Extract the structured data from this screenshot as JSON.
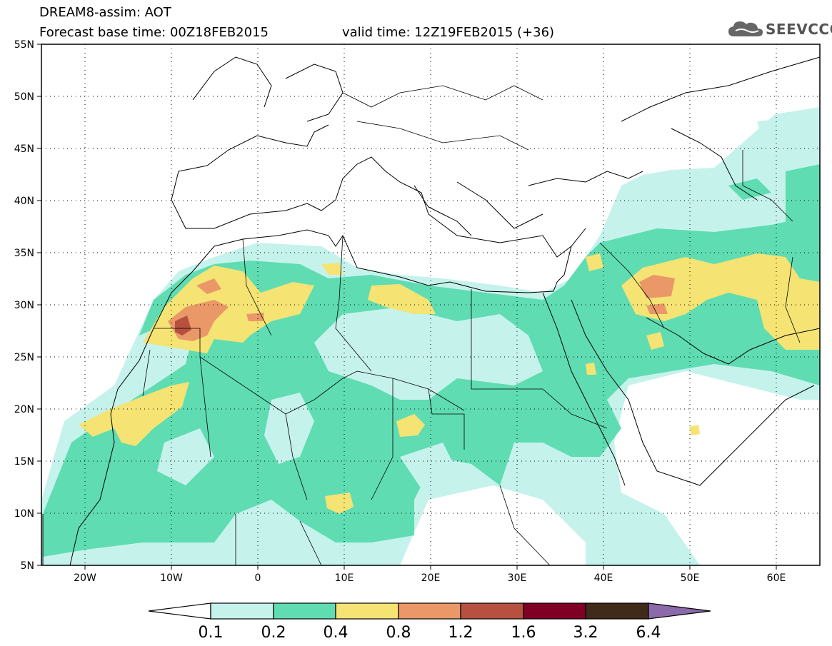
{
  "title": {
    "line1": "DREAM8-assim: AOT",
    "base": "Forecast base time: 00Z18FEB2015",
    "valid": "valid time: 12Z19FEB2015 (+36)"
  },
  "logo": {
    "text": "SEEVCCC",
    "icon": "cloud-icon"
  },
  "map": {
    "lon_range": [
      -25,
      65
    ],
    "lat_range": [
      5,
      55
    ],
    "grid": "dotted",
    "lat_labels": [
      "55N",
      "50N",
      "45N",
      "40N",
      "35N",
      "30N",
      "25N",
      "20N",
      "15N",
      "10N",
      "5N"
    ],
    "lon_labels": [
      "20W",
      "10W",
      "0",
      "10E",
      "20E",
      "30E",
      "40E",
      "50E",
      "60E"
    ]
  },
  "colorbar": {
    "labels": [
      "0.1",
      "0.2",
      "0.4",
      "0.8",
      "1.2",
      "1.6",
      "3.2",
      "6.4"
    ],
    "colors": [
      "#ffffff",
      "#c6f2ec",
      "#5fdcb2",
      "#f5e374",
      "#ea9868",
      "#b5513e",
      "#800025",
      "#402a1a",
      "#8a6aa8"
    ]
  }
}
